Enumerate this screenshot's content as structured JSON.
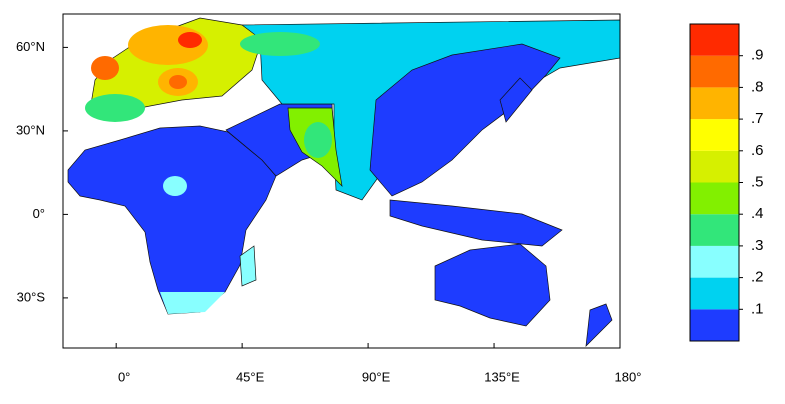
{
  "map": {
    "xlim": [
      -19,
      180
    ],
    "ylim": [
      -48,
      72
    ],
    "xticks": [
      {
        "value": 0,
        "label": "0°"
      },
      {
        "value": 45,
        "label": "45°E"
      },
      {
        "value": 90,
        "label": "90°E"
      },
      {
        "value": 135,
        "label": "135°E"
      },
      {
        "value": 180,
        "label": "180°"
      }
    ],
    "yticks": [
      {
        "value": 60,
        "label": "60°N"
      },
      {
        "value": 30,
        "label": "30°N"
      },
      {
        "value": 0,
        "label": "0°"
      },
      {
        "value": -30,
        "label": "30°S"
      }
    ],
    "colorbar": {
      "colors": [
        "#1e3cff",
        "#00d2f0",
        "#88ffff",
        "#32e67a",
        "#82f000",
        "#d6f000",
        "#ffff00",
        "#ffb400",
        "#ff6a00",
        "#ff2a00"
      ],
      "levels": [
        {
          "value": 0.1,
          "label": ".1"
        },
        {
          "value": 0.2,
          "label": ".2"
        },
        {
          "value": 0.3,
          "label": ".3"
        },
        {
          "value": 0.4,
          "label": ".4"
        },
        {
          "value": 0.5,
          "label": ".5"
        },
        {
          "value": 0.6,
          "label": ".6"
        },
        {
          "value": 0.7,
          "label": ".7"
        },
        {
          "value": 0.8,
          "label": ".8"
        },
        {
          "value": 0.9,
          "label": ".9"
        }
      ]
    }
  }
}
